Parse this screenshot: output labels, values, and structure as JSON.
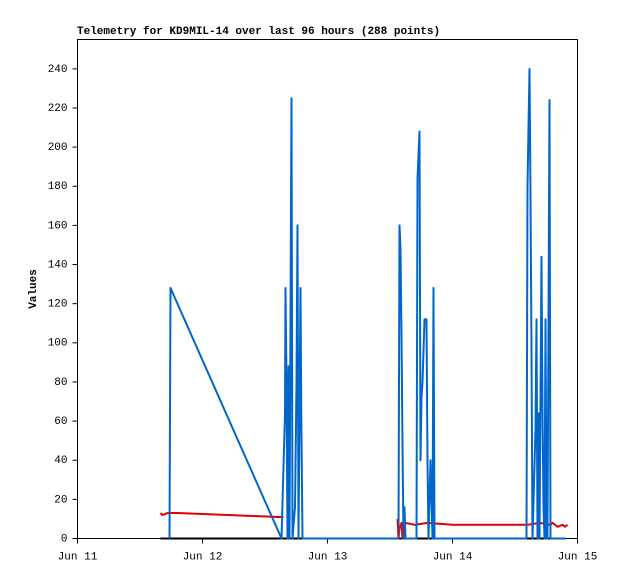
{
  "chart_data": {
    "type": "line",
    "title": "Telemetry for KD9MIL-14 over last 96 hours (288 points)",
    "y_label": "Values",
    "xlim": [
      11,
      15
    ],
    "xticks": [
      {
        "value": 11,
        "label": "Jun 11"
      },
      {
        "value": 12,
        "label": "Jun 12"
      },
      {
        "value": 13,
        "label": "Jun 13"
      },
      {
        "value": 14,
        "label": "Jun 14"
      },
      {
        "value": 15,
        "label": "Jun 15"
      }
    ],
    "ylim": [
      0,
      255
    ],
    "yticks": [
      0,
      20,
      40,
      60,
      80,
      100,
      120,
      140,
      160,
      180,
      200,
      220,
      240
    ],
    "grid": false,
    "series": [
      {
        "color": "#000000",
        "x": [
          11.664,
          14.904
        ],
        "values": [
          0,
          0
        ]
      },
      {
        "color": "#e00000",
        "x": [
          11.664,
          11.68,
          11.72,
          11.76,
          11.8,
          12.0,
          12.2,
          12.4,
          12.6,
          12.648,
          13.0,
          13.62,
          13.7,
          13.8,
          14.0,
          14.3,
          14.6,
          14.7,
          14.78,
          14.8,
          14.84,
          14.88,
          14.9,
          14.92
        ],
        "values": [
          13,
          12,
          13,
          13,
          13,
          12.5,
          12,
          11.5,
          11,
          11,
          null,
          8,
          7,
          8,
          7,
          7,
          7,
          8,
          7,
          8,
          6,
          7,
          6,
          7
        ]
      },
      {
        "color": "#0066cc",
        "x": [
          11.736,
          11.744,
          12.632,
          12.66,
          12.664,
          12.672,
          12.68,
          12.688,
          12.696,
          12.712,
          12.72,
          12.74,
          12.752,
          12.76,
          12.768,
          12.784,
          12.79,
          12.8,
          13.568,
          13.576,
          13.584,
          13.592,
          13.6,
          13.608,
          13.616,
          13.624,
          13.712,
          13.72,
          13.736,
          13.744,
          13.752,
          13.76,
          13.776,
          13.792,
          13.8,
          13.808,
          13.824,
          13.84,
          13.848,
          13.856,
          14.592,
          14.6,
          14.616,
          14.624,
          14.632,
          14.64,
          14.664,
          14.672,
          14.68,
          14.688,
          14.696,
          14.712,
          14.72,
          14.728,
          14.736,
          14.744,
          14.752,
          14.76,
          14.776,
          14.784,
          14.904
        ],
        "values": [
          0,
          128,
          0,
          64,
          128,
          80,
          0,
          88,
          0,
          225,
          0,
          16,
          80,
          160,
          0,
          128,
          64,
          0,
          0,
          160,
          148,
          104,
          48,
          0,
          16,
          0,
          0,
          184,
          208,
          40,
          72,
          80,
          112,
          112,
          40,
          0,
          40,
          0,
          128,
          0,
          0,
          180,
          240,
          176,
          96,
          0,
          56,
          112,
          0,
          64,
          0,
          144,
          64,
          16,
          0,
          112,
          0,
          0,
          224,
          0,
          0
        ]
      },
      {
        "color": "#a02040",
        "x": [
          13.56,
          13.568,
          13.576,
          13.592,
          13.6,
          13.61
        ],
        "values": [
          10,
          0,
          5,
          8,
          0,
          6
        ]
      }
    ]
  }
}
